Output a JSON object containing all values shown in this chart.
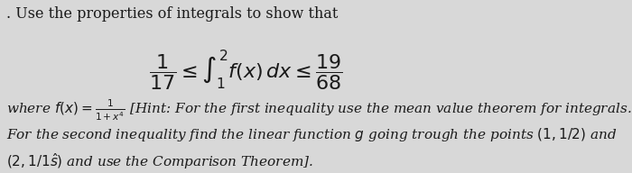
{
  "background_color": "#d8d8d8",
  "title_text": ". Use the properties of integrals to show that",
  "title_fontsize": 11.5,
  "body_italic_text": "where $f(x) = \\frac{1}{1+x^4}$ [Hint: For the first inequality use the mean value theorem for integrals.",
  "body_line2": "For the second inequality find the linear function $g$ going trough the points $(1, 1/2)$ and",
  "body_line3": "$(2, 1/1\\hat{s})$ and use the Comparison Theorem].",
  "formula": "$\\dfrac{1}{17} \\leq \\int_1^2 f(x)\\, dx \\leq \\dfrac{19}{68}$",
  "formula_fontsize": 16,
  "body_fontsize": 11.0,
  "text_color": "#1a1a1a"
}
